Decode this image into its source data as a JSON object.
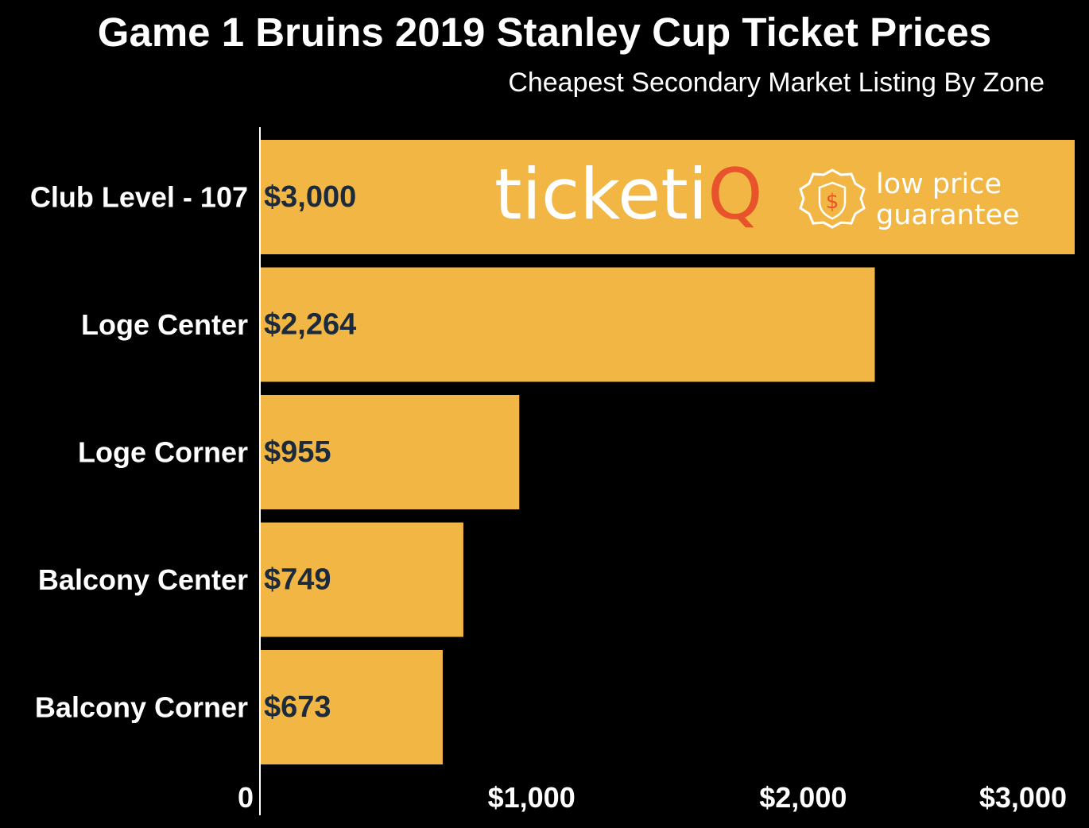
{
  "chart_data": {
    "type": "bar",
    "orientation": "horizontal",
    "title": "Game 1 Bruins 2019 Stanley Cup Ticket Prices",
    "subtitle": "Cheapest Secondary Market Listing By Zone",
    "categories": [
      "Club Level - 107",
      "Loge Center",
      "Loge Corner",
      "Balcony Center",
      "Balcony Corner"
    ],
    "values": [
      3000,
      2264,
      955,
      749,
      673
    ],
    "data_labels": [
      "$3,000",
      "$2,264",
      "$955",
      "$749",
      "$673"
    ],
    "xlim": [
      0,
      3000
    ],
    "x_ticks": [
      0,
      1000,
      2000,
      3000
    ],
    "x_tick_labels": [
      "0",
      "$1,000",
      "$2,000",
      "$3,000"
    ],
    "xlabel": "",
    "ylabel": "",
    "grid": false,
    "legend": "none"
  },
  "colors": {
    "background": "#000000",
    "bar": "#f1b644",
    "data_label": "#1b2a3c",
    "text": "#ffffff",
    "logo_text": "#ffffff",
    "logo_accent": "#e8532b"
  },
  "logo": {
    "brand_text": "ticketi",
    "brand_accent_text": "Q",
    "tagline_line1": "low price",
    "tagline_line2": "guarantee",
    "badge_icon": "dollar-seal-icon"
  }
}
